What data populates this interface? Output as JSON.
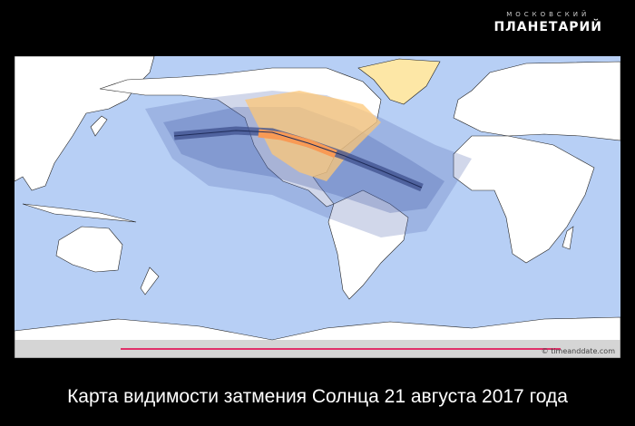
{
  "logo": {
    "top": "МОСКОВСКИЙ",
    "main": "ПЛАНЕТАРИЙ"
  },
  "map": {
    "credit": "© timeanddate.com",
    "colors": {
      "ocean": "#b7cff5",
      "land": "#ffffff",
      "partial_light": "#fde7a6",
      "partial_mid": "#fcc777",
      "totality_band": "#f89a55",
      "night_band": "#7f93c7",
      "progress": "#e0306a"
    }
  },
  "caption": "Карта видимости затмения Солнца  21 августа 2017 года"
}
